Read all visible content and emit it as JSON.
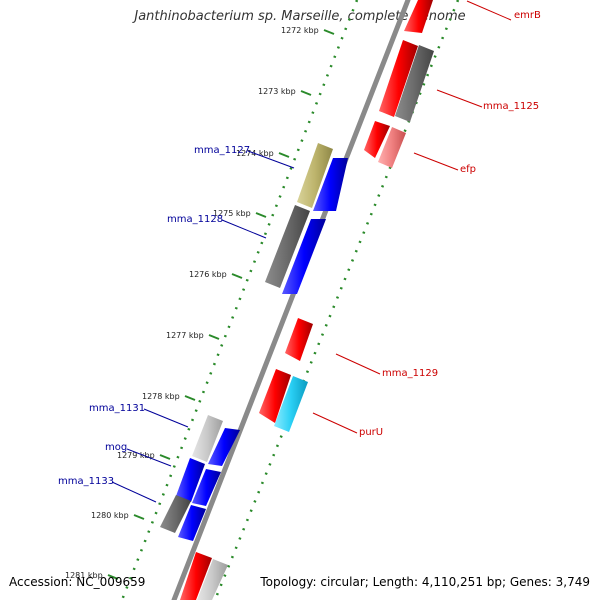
{
  "map": {
    "title": "Janthinobacterium sp. Marseille, complete genome",
    "accession": "Accession: NC_009659",
    "summary": "Topology: circular; Length: 4,110,251 bp; Genes: 3,749",
    "ticks": [
      "1272 kbp",
      "1273 kbp",
      "1274 kbp",
      "1275 kbp",
      "1276 kbp",
      "1277 kbp",
      "1278 kbp",
      "1279 kbp",
      "1280 kbp",
      "1281 kbp"
    ],
    "right_labels": [
      "emrB",
      "mma_1125",
      "efp",
      "mma_1129",
      "purU"
    ],
    "left_labels": [
      "mma_1127",
      "mma_1128",
      "mma_1131",
      "mog",
      "mma_1133"
    ],
    "colors": {
      "forward_cds": "#ff0000",
      "reverse_cds": "#0000ff",
      "backbone": "#888888",
      "gc_ticks": "#2a8a2a",
      "right_label_text": "#cc0000",
      "left_label_text": "#000099"
    }
  }
}
